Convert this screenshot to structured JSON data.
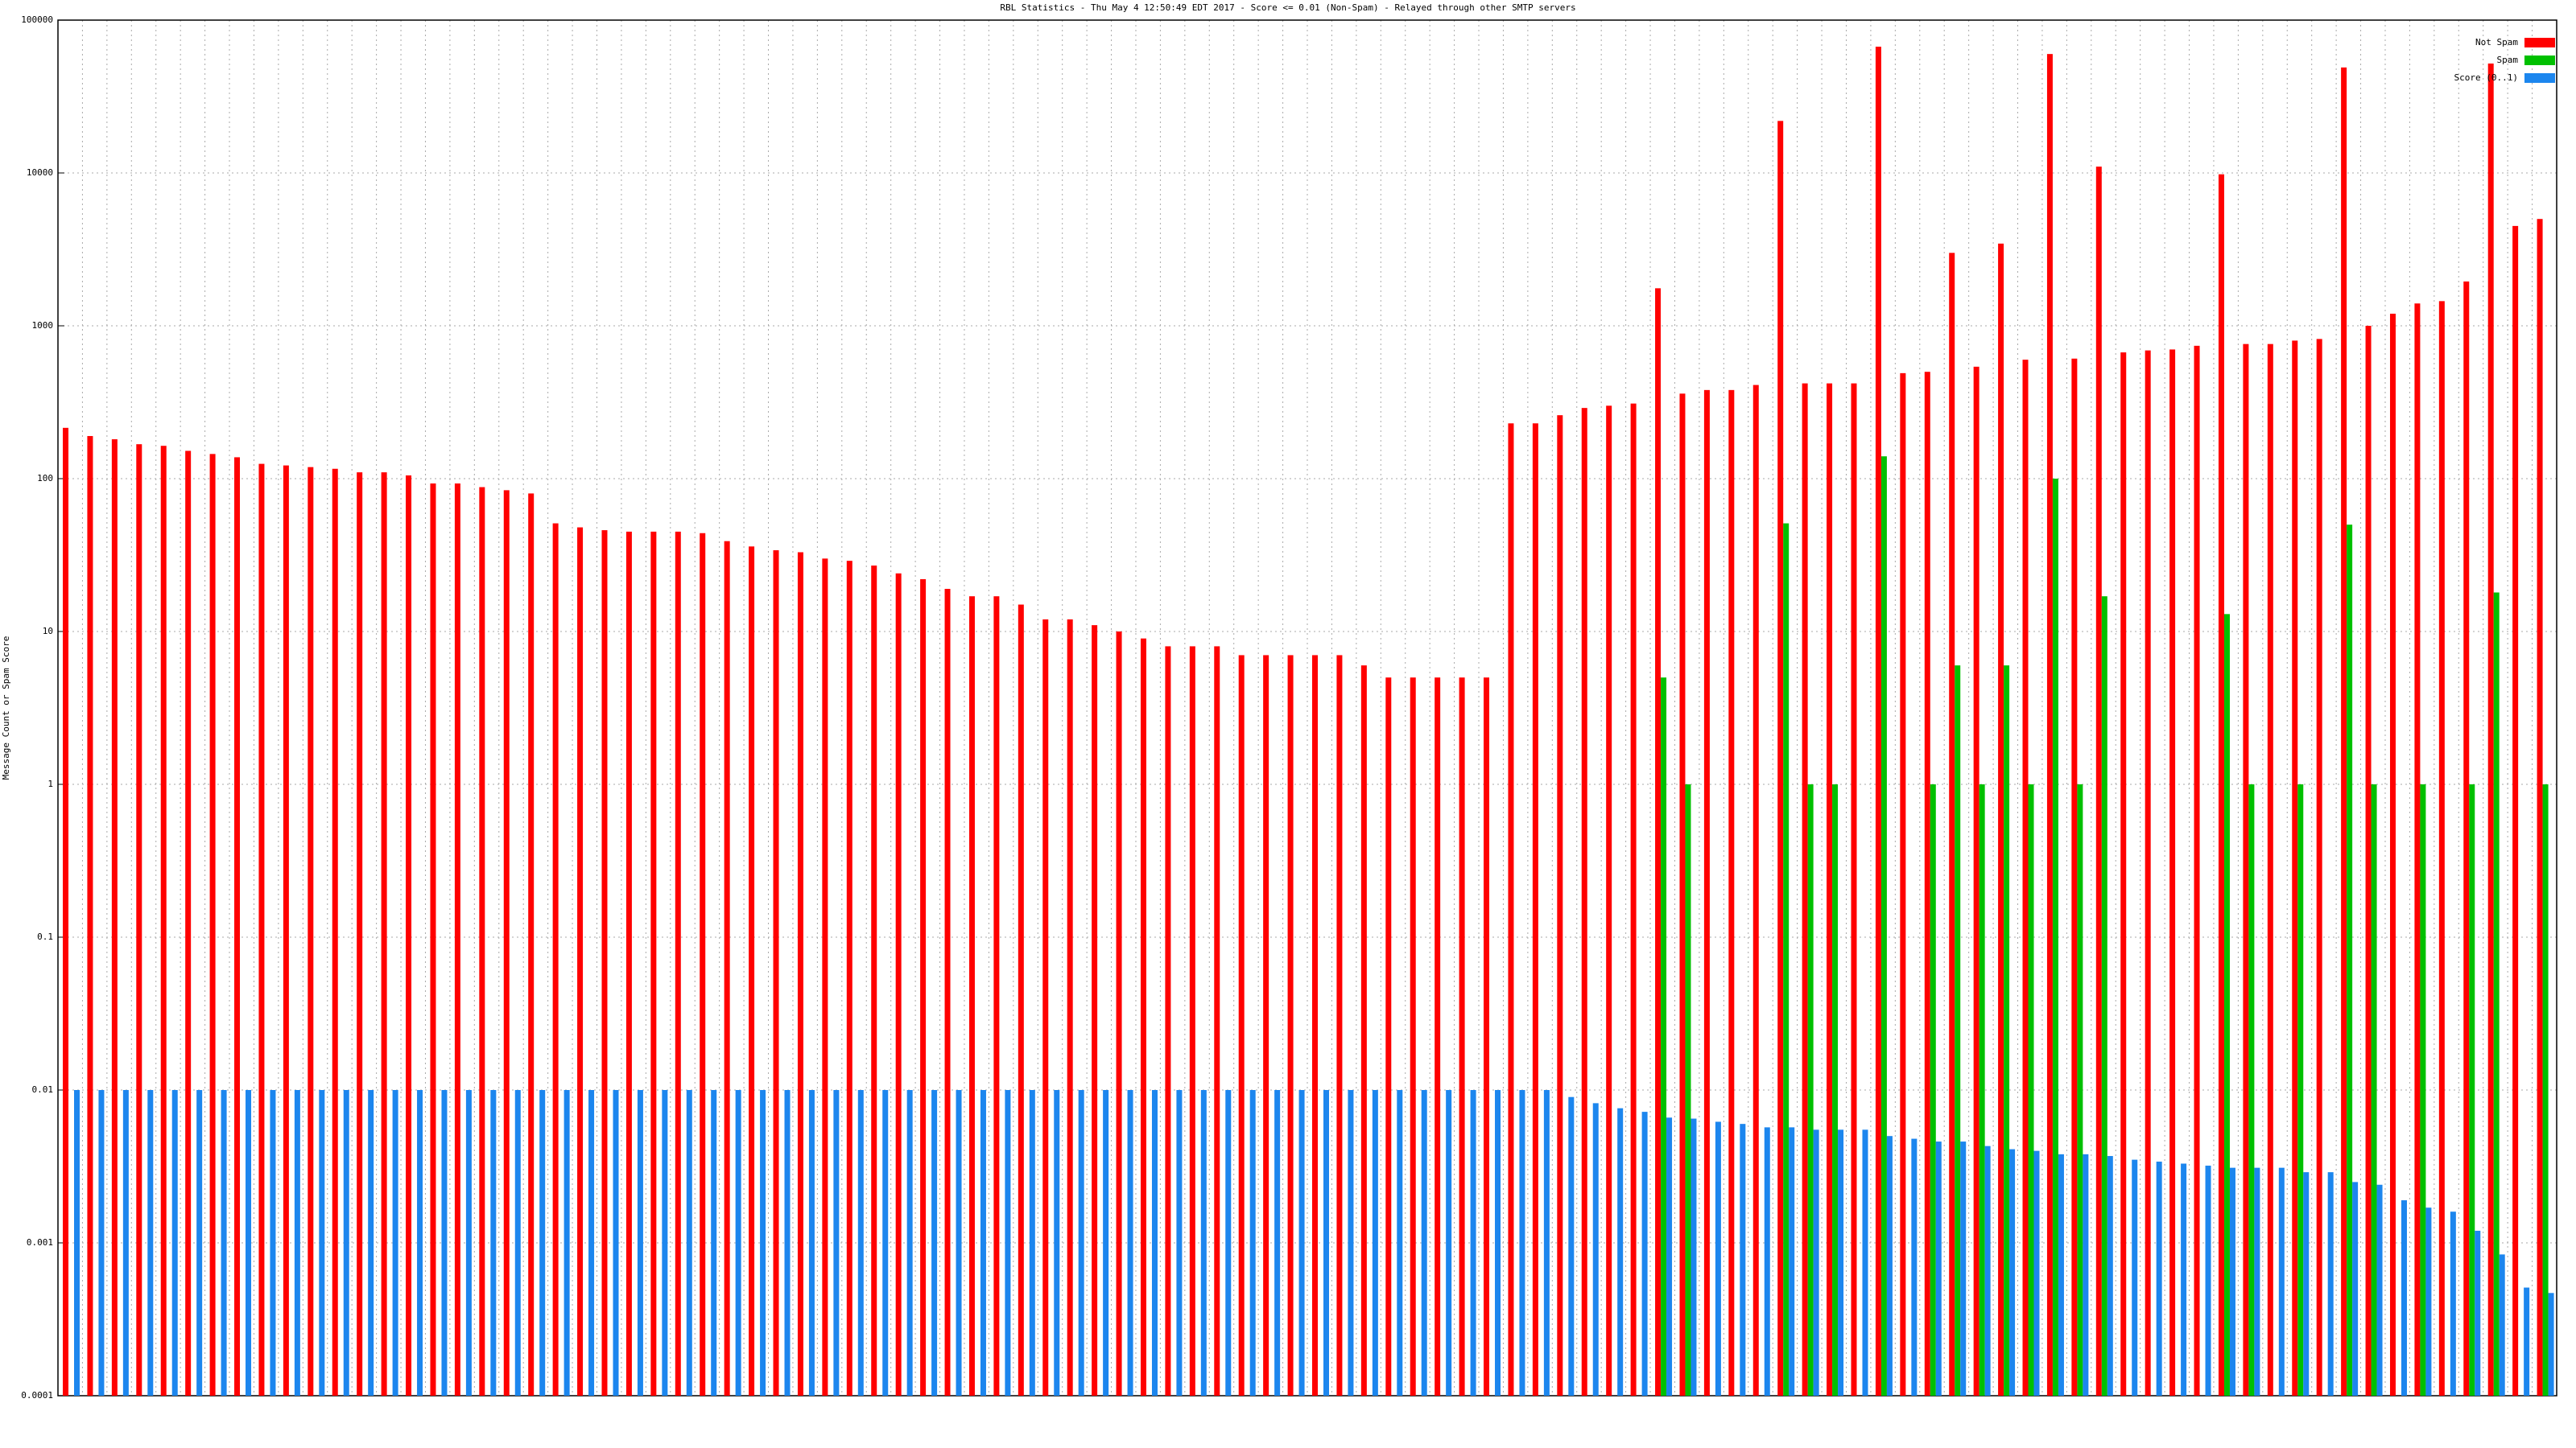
{
  "chart_data": {
    "type": "bar",
    "log_scale": true,
    "grid": true,
    "legend": "top-right",
    "title": "RBL Statistics - Thu May  4 12:50:49 EDT 2017 - Score <= 0.01 (Non-Spam) - Relayed through other SMTP servers",
    "ylabel": "Message Count or Spam Score",
    "ylim": [
      0.0001,
      100000
    ],
    "yticks": [
      0.0001,
      0.001,
      0.01,
      0.1,
      1,
      10,
      100,
      1000,
      10000,
      100000
    ],
    "categories": [
      null,
      null,
      null,
      null,
      null,
      null,
      null,
      null,
      null,
      null,
      null,
      null,
      null,
      null,
      null,
      null,
      null,
      null,
      null,
      null,
      null,
      null,
      null,
      null,
      null,
      null,
      null,
      null,
      null,
      null,
      null,
      null,
      null,
      null,
      null,
      null,
      null,
      null,
      null,
      null,
      null,
      null,
      null,
      null,
      null,
      null,
      null,
      null,
      null,
      null,
      null,
      null,
      null,
      null,
      null,
      null,
      null,
      null,
      null,
      null,
      null,
      null,
      null,
      null,
      null,
      null,
      null,
      null,
      null,
      null,
      null,
      null,
      null,
      null,
      null,
      null,
      null,
      null,
      null,
      null,
      null,
      null,
      null,
      null,
      null,
      null,
      null,
      null,
      null,
      null,
      null,
      null,
      null,
      null,
      null,
      null,
      null,
      null,
      null,
      null,
      null,
      null
    ],
    "series": [
      {
        "name": "Not Spam",
        "color": "#ff0000",
        "values": [
          215,
          190,
          181,
          168,
          164,
          152,
          145,
          138,
          125,
          122,
          119,
          116,
          110,
          110,
          105,
          93,
          93,
          88,
          84,
          80,
          51,
          48,
          46,
          45,
          45,
          45,
          44,
          39,
          36,
          34,
          33,
          30,
          29,
          27,
          24,
          22,
          19,
          17,
          17,
          15,
          12,
          12,
          11,
          10,
          9,
          8,
          8,
          8,
          7,
          7,
          7,
          7,
          7,
          6,
          5,
          5,
          5,
          5,
          5,
          230,
          230,
          260,
          290,
          300,
          310,
          1760,
          360,
          380,
          380,
          410,
          21900,
          420,
          420,
          420,
          67000,
          490,
          500,
          3000,
          540,
          3450,
          600,
          60000,
          610,
          11000,
          670,
          690,
          700,
          740,
          9800,
          760,
          760,
          800,
          820,
          49000,
          1000,
          1200,
          1400,
          1450,
          1950,
          52000,
          4500,
          5000
        ]
      },
      {
        "name": "Spam",
        "color": "#00c000",
        "values": [
          null,
          null,
          null,
          null,
          null,
          null,
          null,
          null,
          null,
          null,
          null,
          null,
          null,
          null,
          null,
          null,
          null,
          null,
          null,
          null,
          null,
          null,
          null,
          null,
          null,
          null,
          null,
          null,
          null,
          null,
          null,
          null,
          null,
          null,
          null,
          null,
          null,
          null,
          null,
          null,
          null,
          null,
          null,
          null,
          null,
          null,
          null,
          null,
          null,
          null,
          null,
          null,
          null,
          null,
          null,
          null,
          null,
          null,
          null,
          null,
          null,
          null,
          null,
          null,
          null,
          5,
          1,
          null,
          null,
          null,
          51,
          1,
          1,
          null,
          140,
          null,
          1,
          6,
          1,
          6,
          1,
          100,
          1,
          17,
          null,
          null,
          null,
          null,
          13,
          1,
          null,
          1,
          null,
          50,
          1,
          null,
          1,
          null,
          1,
          18,
          null,
          1
        ]
      },
      {
        "name": "Score (0..1)",
        "color": "#1c86ee",
        "values": [
          0.01,
          0.01,
          0.01,
          0.01,
          0.01,
          0.01,
          0.01,
          0.01,
          0.01,
          0.01,
          0.01,
          0.01,
          0.01,
          0.01,
          0.01,
          0.01,
          0.01,
          0.01,
          0.01,
          0.01,
          0.01,
          0.01,
          0.01,
          0.01,
          0.01,
          0.01,
          0.01,
          0.01,
          0.01,
          0.01,
          0.01,
          0.01,
          0.01,
          0.01,
          0.01,
          0.01,
          0.01,
          0.01,
          0.01,
          0.01,
          0.01,
          0.01,
          0.01,
          0.01,
          0.01,
          0.01,
          0.01,
          0.01,
          0.01,
          0.01,
          0.01,
          0.01,
          0.01,
          0.01,
          0.01,
          0.01,
          0.01,
          0.01,
          0.01,
          0.01,
          0.01,
          0.009,
          0.0082,
          0.0076,
          0.0072,
          0.0066,
          0.0065,
          0.0062,
          0.006,
          0.0057,
          0.0057,
          0.0055,
          0.0055,
          0.0055,
          0.005,
          0.0048,
          0.0046,
          0.0046,
          0.0043,
          0.0041,
          0.004,
          0.0038,
          0.0038,
          0.0037,
          0.0035,
          0.0034,
          0.0033,
          0.0032,
          0.0031,
          0.0031,
          0.0031,
          0.0029,
          0.0029,
          0.0025,
          0.0024,
          0.0019,
          0.0017,
          0.0016,
          0.0012,
          0.00084,
          0.00051,
          0.00047
        ]
      }
    ]
  }
}
